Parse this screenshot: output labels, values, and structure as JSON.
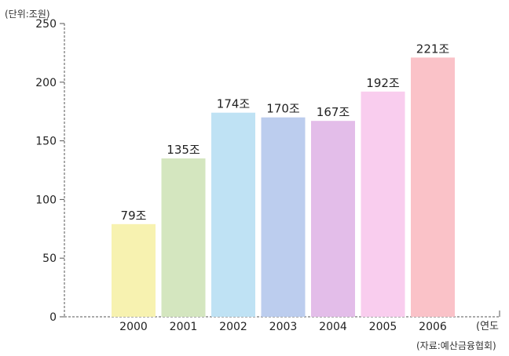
{
  "chart_data": {
    "type": "bar",
    "title": "",
    "unit_label": "(단위:조원)",
    "xlabel": "(연도",
    "ylabel": "",
    "source": "(자료:예산금융협회)",
    "categories": [
      "2000",
      "2001",
      "2002",
      "2003",
      "2004",
      "2005",
      "2006"
    ],
    "values": [
      79,
      135,
      174,
      170,
      167,
      192,
      221
    ],
    "value_labels": [
      "79조",
      "135조",
      "174조",
      "170조",
      "167조",
      "192조",
      "221조"
    ],
    "bar_colors": [
      "#f7f2b0",
      "#d4e6bf",
      "#bfe2f4",
      "#bccdee",
      "#e3bde9",
      "#f9cdee",
      "#fac2c8"
    ],
    "ylim": [
      0,
      250
    ],
    "yticks": [
      0,
      50,
      100,
      150,
      200,
      250
    ],
    "grid": false,
    "legend": "none"
  }
}
